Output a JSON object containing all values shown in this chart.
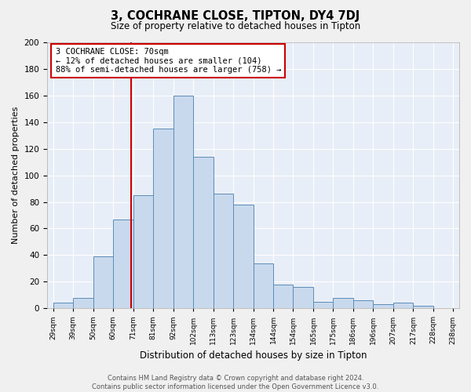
{
  "title": "3, COCHRANE CLOSE, TIPTON, DY4 7DJ",
  "subtitle": "Size of property relative to detached houses in Tipton",
  "xlabel": "Distribution of detached houses by size in Tipton",
  "ylabel": "Number of detached properties",
  "bar_values": [
    4,
    8,
    39,
    67,
    85,
    135,
    160,
    114,
    86,
    78,
    34,
    18,
    16,
    5,
    8,
    6,
    3,
    4,
    2
  ],
  "bar_color": "#c9d9ed",
  "bar_edge_color": "#5b8db8",
  "bg_color": "#e8eef7",
  "grid_color": "#ffffff",
  "vline_color": "#cc0000",
  "annotation_text": "3 COCHRANE CLOSE: 70sqm\n← 12% of detached houses are smaller (104)\n88% of semi-detached houses are larger (758) →",
  "annotation_box_color": "#ffffff",
  "annotation_box_edge": "#cc0000",
  "footer": "Contains HM Land Registry data © Crown copyright and database right 2024.\nContains public sector information licensed under the Open Government Licence v3.0.",
  "ylim": [
    0,
    200
  ],
  "yticks": [
    0,
    20,
    40,
    60,
    80,
    100,
    120,
    140,
    160,
    180,
    200
  ],
  "tick_labels": [
    "29sqm",
    "39sqm",
    "50sqm",
    "60sqm",
    "71sqm",
    "81sqm",
    "92sqm",
    "102sqm",
    "113sqm",
    "123sqm",
    "134sqm",
    "144sqm",
    "154sqm",
    "165sqm",
    "175sqm",
    "186sqm",
    "196sqm",
    "207sqm",
    "217sqm",
    "228sqm",
    "238sqm"
  ],
  "bin_edges": [
    29,
    39,
    50,
    60,
    71,
    81,
    92,
    102,
    113,
    123,
    134,
    144,
    154,
    165,
    175,
    186,
    196,
    207,
    217,
    228,
    238
  ],
  "fig_width": 6.0,
  "fig_height": 5.0
}
